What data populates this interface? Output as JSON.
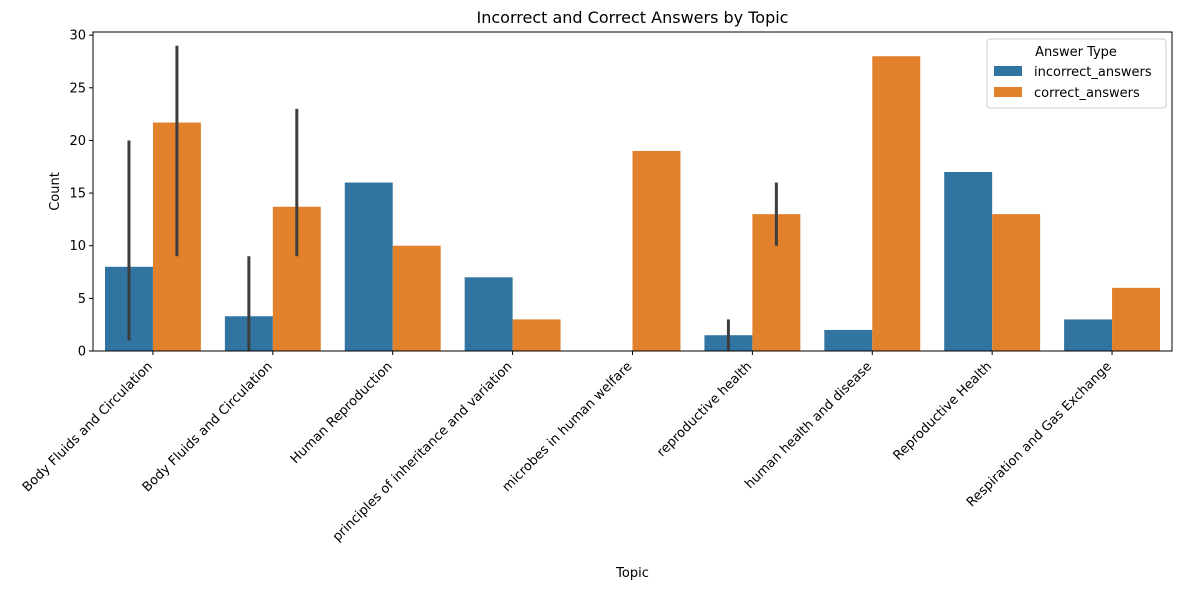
{
  "chart_data": {
    "type": "bar",
    "title": "Incorrect and Correct Answers by Topic",
    "xlabel": "Topic",
    "ylabel": "Count",
    "ylim": [
      0,
      30.3
    ],
    "yticks": [
      0,
      5,
      10,
      15,
      20,
      25,
      30
    ],
    "grid": false,
    "legend": {
      "title": "Answer Type",
      "placement": "top-right"
    },
    "categories": [
      "Body Fluids and Circulation",
      "Body Fluids and Circulation ",
      "Human Reproduction",
      "principles of inheritance and variation",
      "microbes in human welfare",
      "reproductive health",
      "human health and disease",
      "Reproductive Health",
      "Respiration and Gas Exchange"
    ],
    "series": [
      {
        "name": "incorrect_answers",
        "color": "#3274a1",
        "values": [
          8,
          3.3,
          16,
          7,
          0,
          1.5,
          2,
          17,
          3
        ],
        "error_bars": [
          [
            1,
            20
          ],
          [
            0,
            9
          ],
          null,
          null,
          null,
          [
            0,
            3
          ],
          null,
          null,
          null
        ]
      },
      {
        "name": "correct_answers",
        "color": "#e1812c",
        "values": [
          21.7,
          13.7,
          10,
          3,
          19,
          13,
          28,
          13,
          6
        ],
        "error_bars": [
          [
            9,
            29
          ],
          [
            9,
            23
          ],
          null,
          null,
          null,
          [
            10,
            16
          ],
          null,
          null,
          null
        ]
      }
    ]
  }
}
